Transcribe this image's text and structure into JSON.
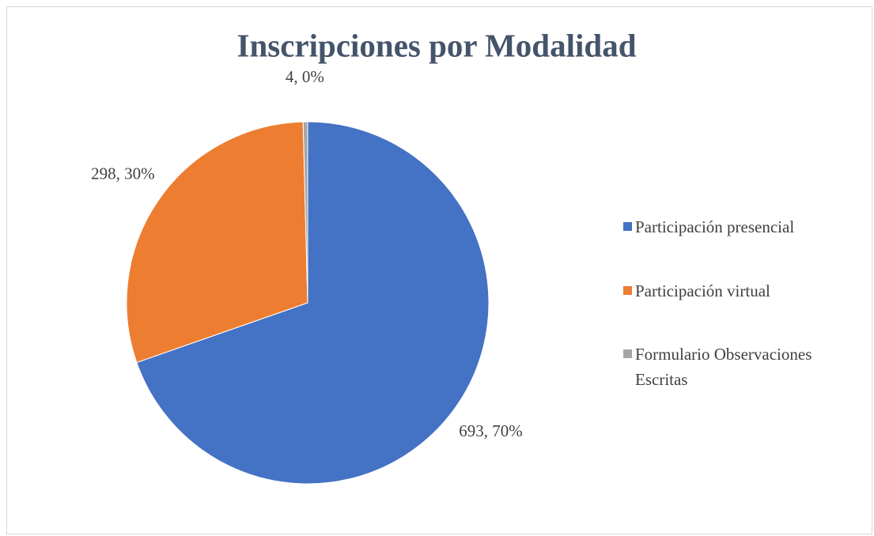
{
  "chart_data": {
    "type": "pie",
    "title": "Inscripciones por Modalidad",
    "categories": [
      "Participación presencial",
      "Participación virtual",
      "Formulario Observaciones Escritas"
    ],
    "values": [
      693,
      298,
      4
    ],
    "value_labels": [
      "693, 70%",
      "298, 30%",
      "4, 0%"
    ],
    "colors": [
      "#4472c4",
      "#ed7d31",
      "#a5a5a5"
    ],
    "legend": "right"
  }
}
